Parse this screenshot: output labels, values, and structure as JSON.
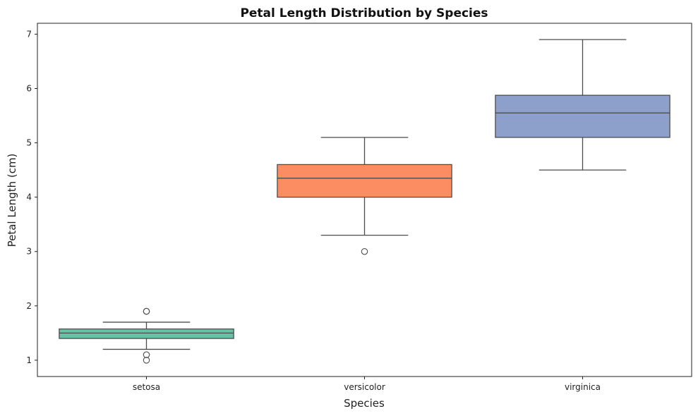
{
  "chart_data": {
    "type": "box",
    "title": "Petal Length Distribution by Species",
    "xlabel": "Species",
    "ylabel": "Petal Length (cm)",
    "categories": [
      "setosa",
      "versicolor",
      "virginica"
    ],
    "ylim": [
      0.7,
      7.2
    ],
    "yticks": [
      "1",
      "2",
      "3",
      "4",
      "5",
      "6",
      "7"
    ],
    "grid": false,
    "legend": "none",
    "edge_color": "#4d4d4d",
    "boxes": [
      {
        "category": "setosa",
        "color": "#66c2a5",
        "whisker_low": 1.2,
        "q1": 1.4,
        "median": 1.5,
        "q3": 1.575,
        "whisker_high": 1.7,
        "outliers": [
          1.0,
          1.1,
          1.9,
          1.9
        ]
      },
      {
        "category": "versicolor",
        "color": "#fc8d62",
        "whisker_low": 3.3,
        "q1": 4.0,
        "median": 4.35,
        "q3": 4.6,
        "whisker_high": 5.1,
        "outliers": [
          3.0
        ]
      },
      {
        "category": "virginica",
        "color": "#8da0cb",
        "whisker_low": 4.5,
        "q1": 5.1,
        "median": 5.55,
        "q3": 5.875,
        "whisker_high": 6.9,
        "outliers": []
      }
    ]
  }
}
